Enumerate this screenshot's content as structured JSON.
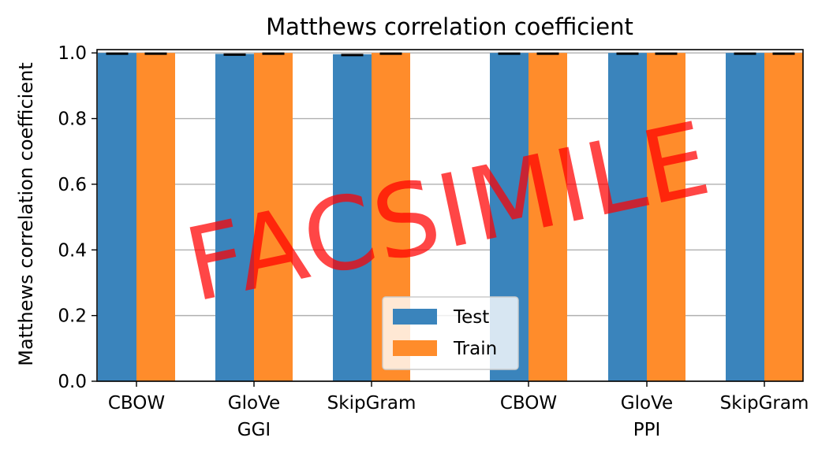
{
  "chart_data": {
    "type": "bar",
    "title": "Matthews correlation coefficient",
    "ylabel": "Matthews correlation coefficient",
    "xlabel": "",
    "ylim": [
      0,
      1.0
    ],
    "yticks": [
      "0.0",
      "0.2",
      "0.4",
      "0.6",
      "0.8",
      "1.0"
    ],
    "grid": "horizontal",
    "legend_position": "lower-center",
    "categories": [
      "CBOW",
      "GloVe",
      "SkipGram",
      "CBOW",
      "GloVe",
      "SkipGram"
    ],
    "groups": [
      {
        "label": "GGI",
        "categories": [
          "CBOW",
          "GloVe",
          "SkipGram"
        ]
      },
      {
        "label": "PPI",
        "categories": [
          "CBOW",
          "GloVe",
          "SkipGram"
        ]
      }
    ],
    "series": [
      {
        "name": "Test",
        "color": "#3a84bc",
        "values": [
          1.0,
          0.997,
          0.996,
          1.0,
          1.0,
          1.0
        ]
      },
      {
        "name": "Train",
        "color": "#ff8c2b",
        "values": [
          1.0,
          1.0,
          1.0,
          1.0,
          1.0,
          1.0
        ]
      }
    ],
    "error_bar_color": "#000000"
  },
  "watermark": "FACSIMILE"
}
